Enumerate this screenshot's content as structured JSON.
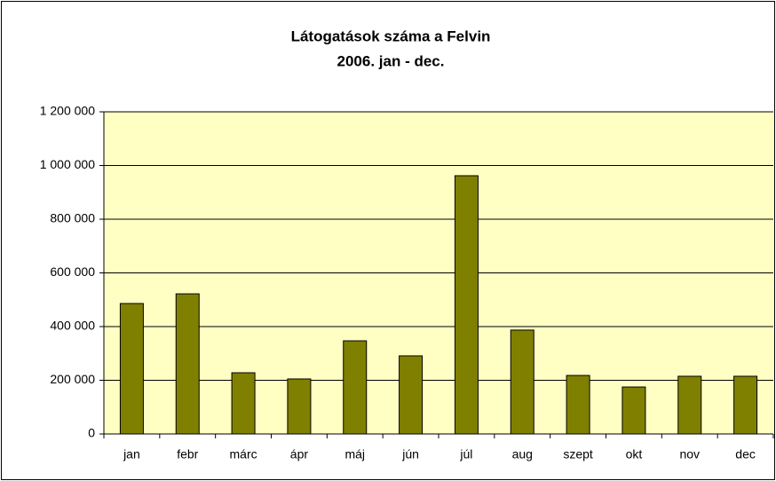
{
  "chart_data": {
    "type": "bar",
    "title": "Látogatások száma a Felvin",
    "subtitle": "2006. jan - dec.",
    "categories": [
      "jan",
      "febr",
      "márc",
      "ápr",
      "máj",
      "jún",
      "júl",
      "aug",
      "szept",
      "okt",
      "nov",
      "dec"
    ],
    "values": [
      486000,
      522000,
      228000,
      205000,
      347000,
      291000,
      962000,
      387000,
      218000,
      175000,
      215000,
      215000
    ],
    "color": "#808000",
    "ylim": [
      0,
      1200000
    ],
    "yticks": [
      0,
      {
        "value": 200000,
        "label": "200 000"
      },
      {
        "value": 400000,
        "label": "400 000"
      },
      {
        "value": 600000,
        "label": "600 000"
      },
      {
        "value": 800000,
        "label": "800 000"
      },
      {
        "value": 1000000,
        "label": "1 000 000"
      },
      {
        "value": 1200000,
        "label": "1 200 000"
      }
    ],
    "grid": true
  }
}
